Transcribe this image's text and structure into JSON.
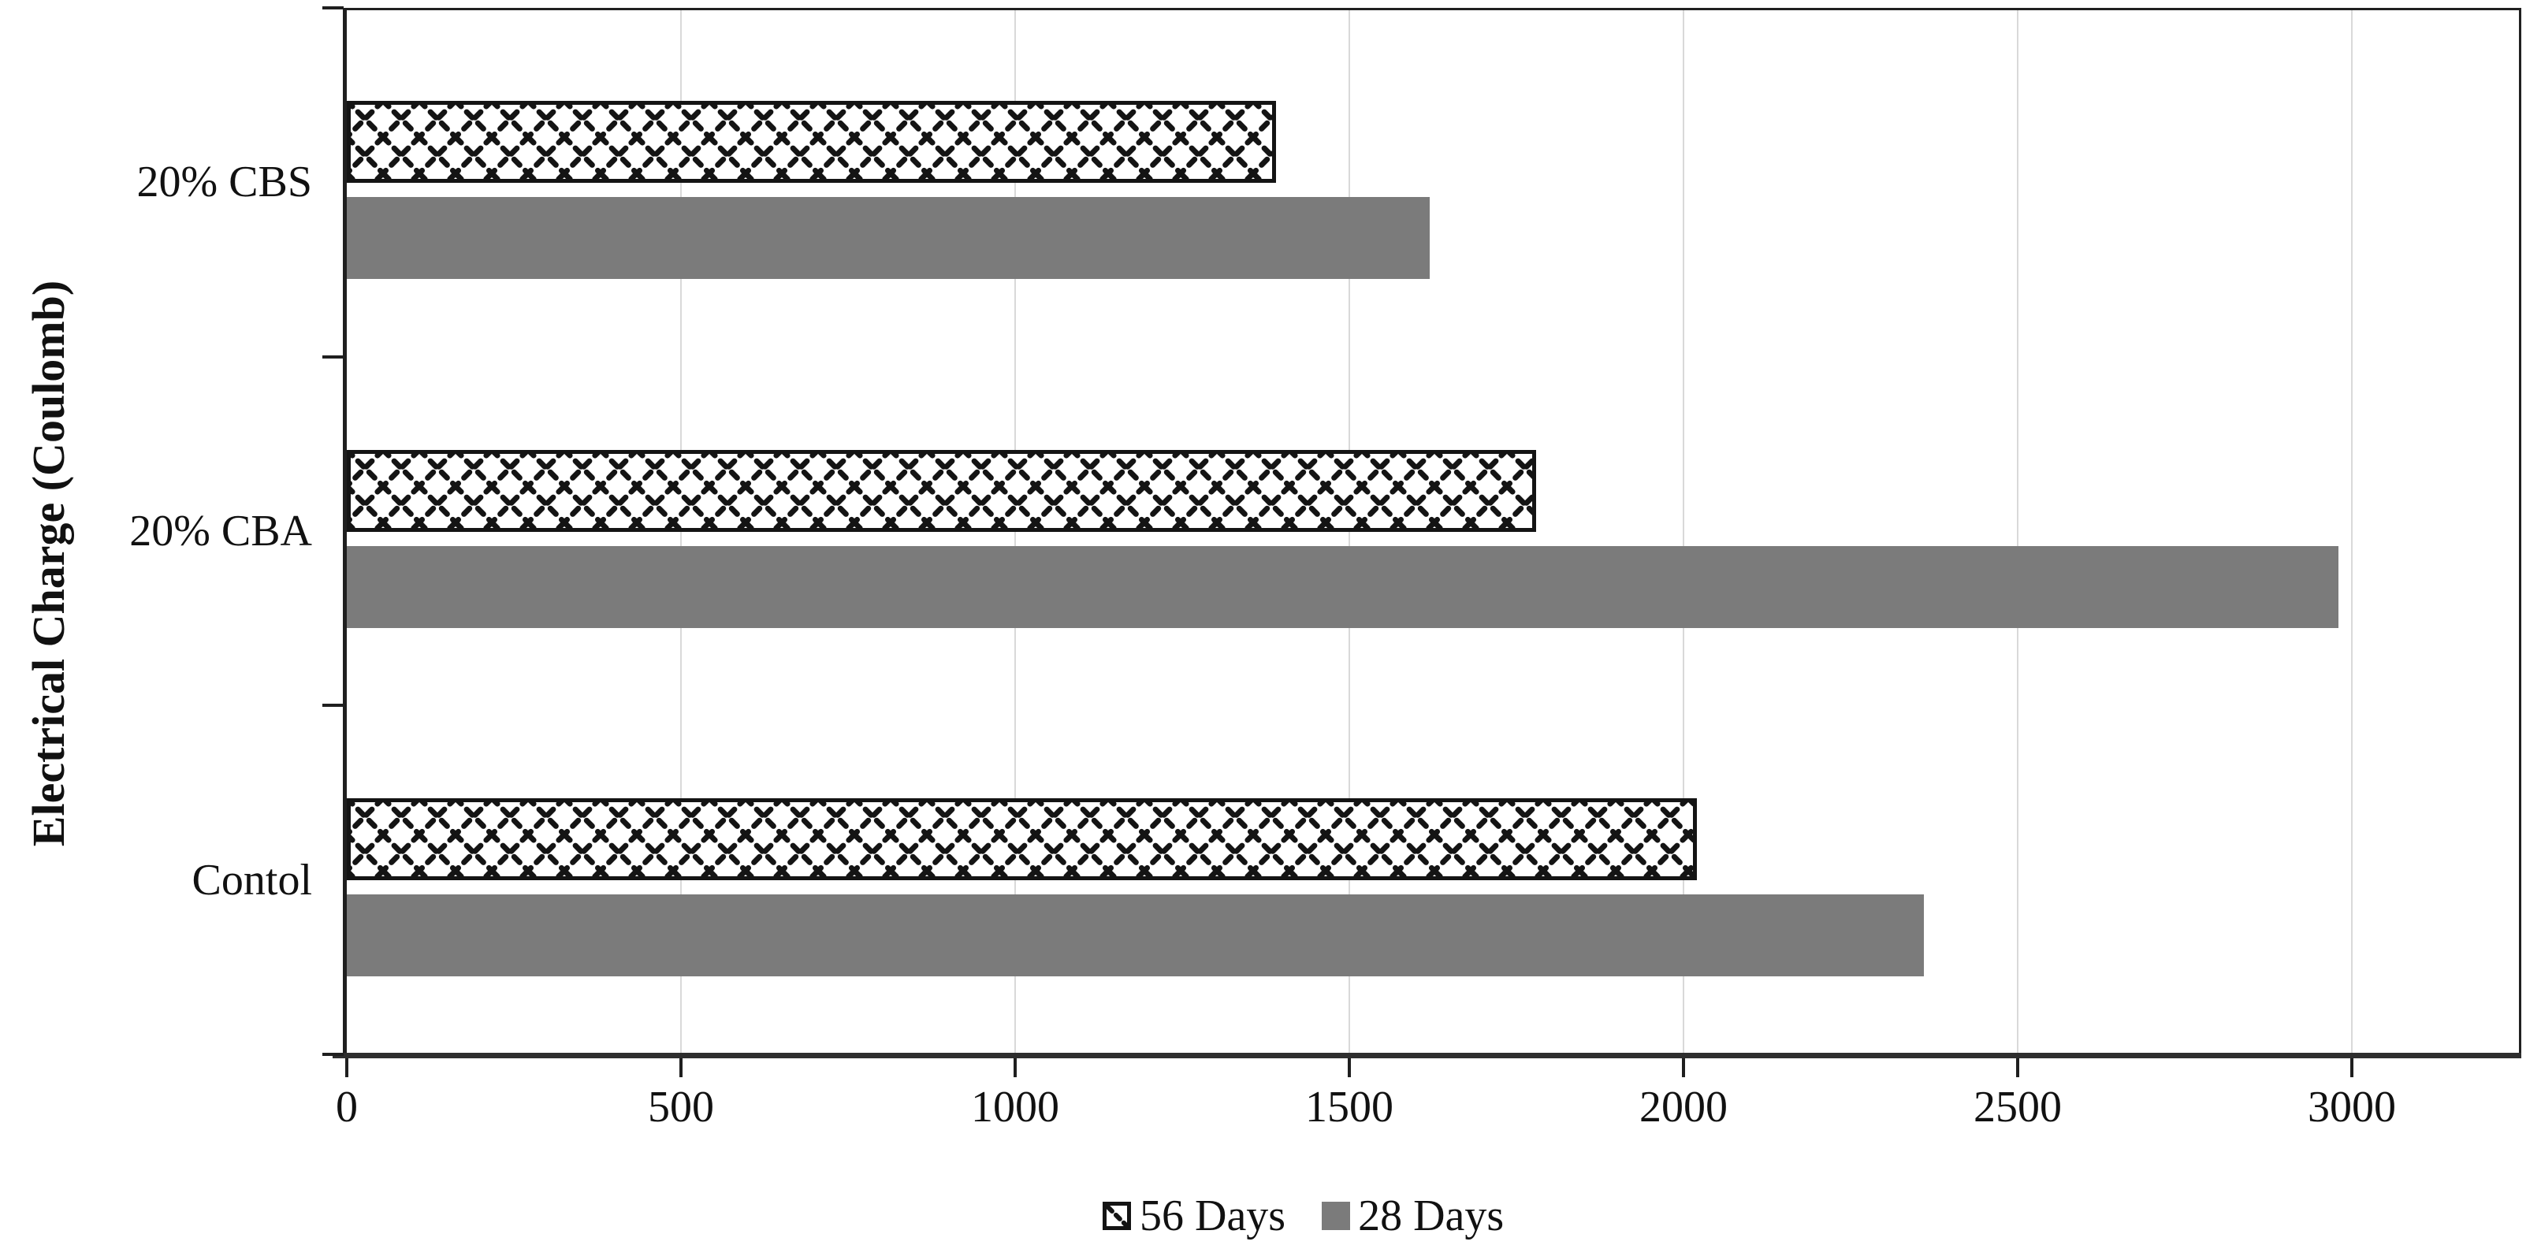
{
  "chart_data": {
    "type": "bar",
    "orientation": "horizontal",
    "title": "",
    "axis_label": "Electrical Charge (Coulomb)",
    "xlabel": "",
    "categories": [
      "20% CBS",
      "20% CBA",
      "Contol"
    ],
    "series": [
      {
        "name": "56 Days",
        "pattern": "crosshatch",
        "fill": "#ffffff",
        "hatch_color": "#141414",
        "values": [
          1390,
          1780,
          2020
        ]
      },
      {
        "name": "28 Days",
        "pattern": "solid",
        "fill": "#7b7b7b",
        "values": [
          1620,
          2980,
          2360
        ]
      }
    ],
    "xlim": [
      0,
      3250
    ],
    "xticks": [
      0,
      500,
      1000,
      1500,
      2000,
      2500,
      3000
    ],
    "grid": "vertical-only",
    "legend_position": "bottom-center",
    "colors": {
      "solid_bar": "#7b7b7b",
      "hatch": "#141414",
      "gridline": "#d9d9d9",
      "axis_line": "#1f1f1f",
      "plot_border": "#202020",
      "text": "#111111",
      "background": "#ffffff"
    }
  }
}
